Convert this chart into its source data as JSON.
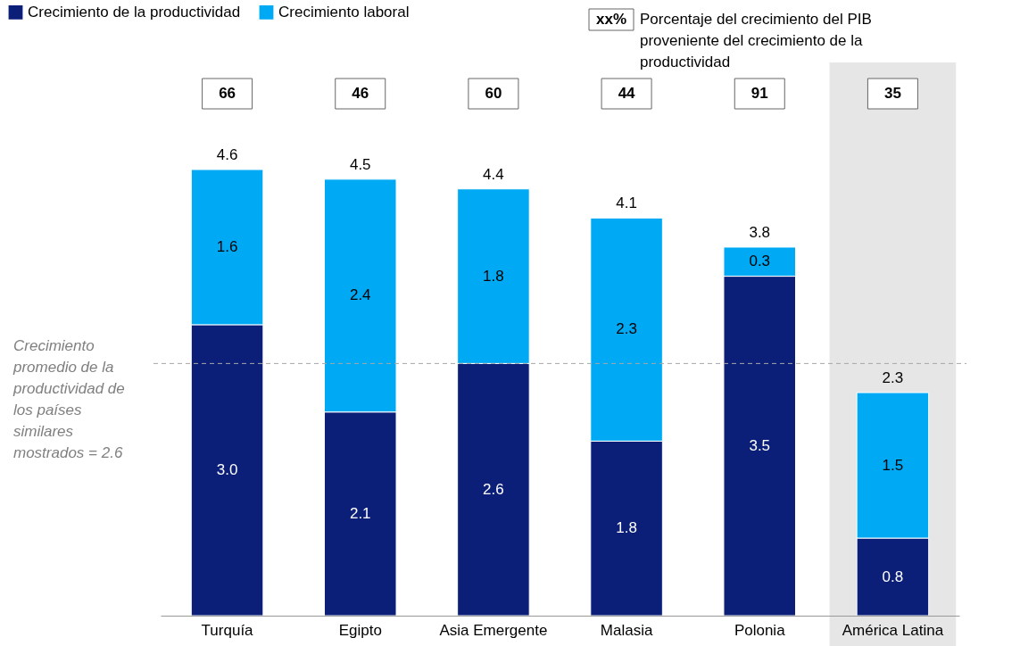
{
  "chart_data": {
    "type": "bar",
    "stacked": true,
    "legend": "top left",
    "grid": false,
    "categories": [
      "Turquía",
      "Egipto",
      "Asia Emergente",
      "Malasia",
      "Polonia",
      "América Latina"
    ],
    "series": [
      {
        "name": "Crecimiento de la productividad",
        "color": "#0b1f78",
        "values": [
          3.0,
          2.1,
          2.6,
          1.8,
          3.5,
          0.8
        ],
        "value_labels": [
          "3.0",
          "2.1",
          "2.6",
          "1.8",
          "3.5",
          "0.8"
        ]
      },
      {
        "name": "Crecimiento laboral",
        "color": "#00a9f4",
        "values": [
          1.6,
          2.4,
          1.8,
          2.3,
          0.3,
          1.5
        ],
        "value_labels": [
          "1.6",
          "2.4",
          "1.8",
          "2.3",
          "0.3",
          "1.5"
        ]
      }
    ],
    "totals": [
      "4.6",
      "4.5",
      "4.4",
      "4.1",
      "3.8",
      "2.3"
    ],
    "ref_lines": [
      {
        "axis": "y",
        "value": 2.6,
        "label": "Crecimiento promedio de la productividad de los países similares mostrados = 2.6",
        "color": "#a6a6a6",
        "line_style": "dashed"
      }
    ],
    "bands": [
      {
        "axis": "x",
        "from": "América Latina",
        "to": "América Latina",
        "color": "#e6e6e6"
      }
    ],
    "annotations": [
      "66",
      "46",
      "60",
      "44",
      "91",
      "35",
      "xx%",
      "Porcentaje del crecimiento del PIB proveniente del crecimiento de la productividad"
    ]
  }
}
